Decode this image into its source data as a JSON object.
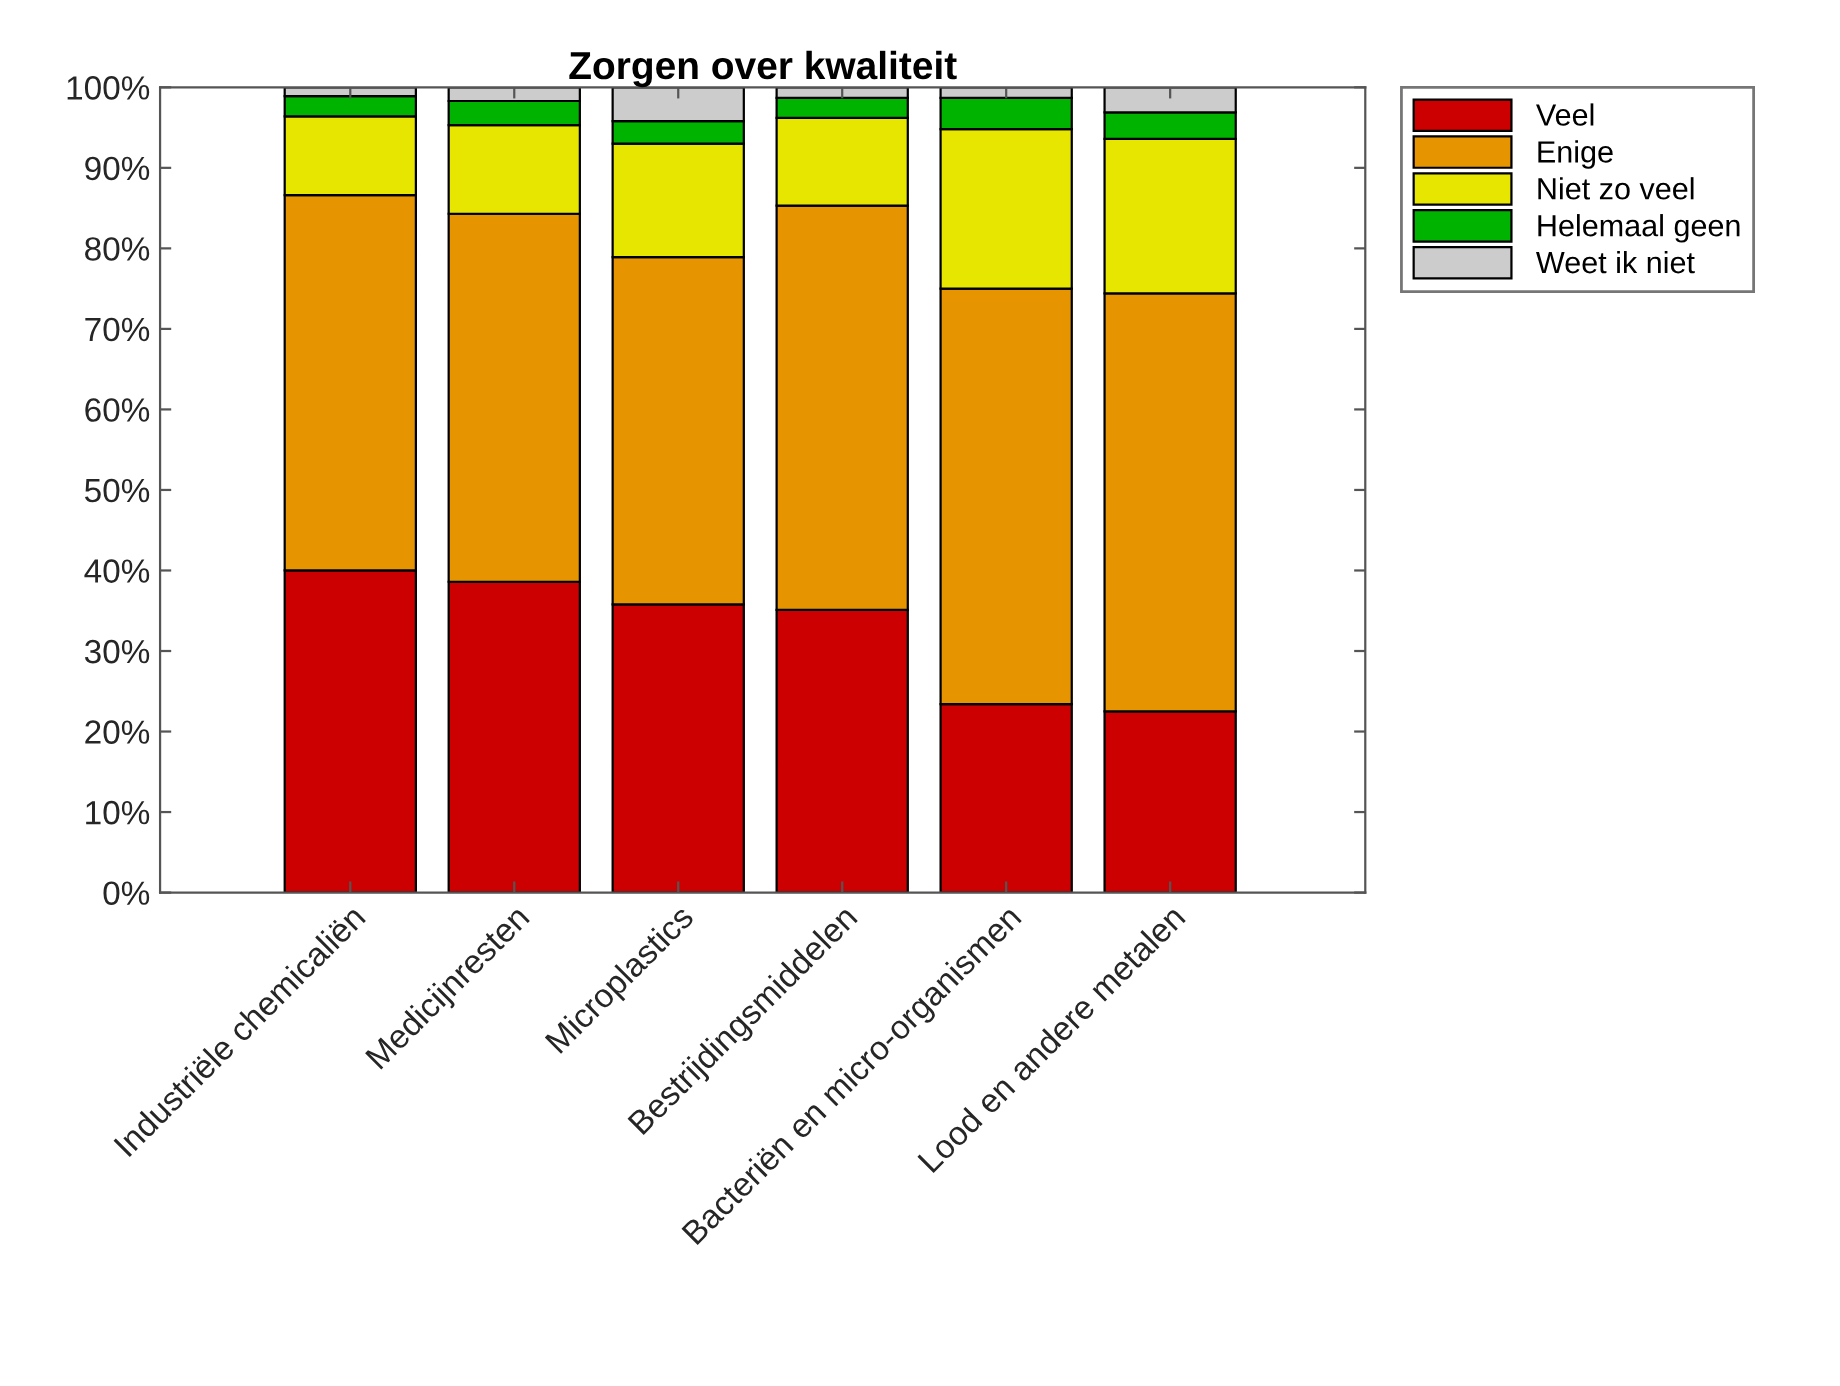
{
  "chart_data": {
    "type": "bar",
    "title": "Zorgen over kwaliteit",
    "stacked": true,
    "categories": [
      "Industriële chemicaliën",
      "Medicijnresten",
      "Microplastics",
      "Bestrijdingsmiddelen",
      "Bacteriën en micro-organismen",
      "Lood en andere metalen"
    ],
    "series": [
      {
        "name": "Veel",
        "color": "#cc0000",
        "values": [
          40.0,
          38.6,
          35.8,
          35.1,
          23.4,
          22.5
        ]
      },
      {
        "name": "Enige",
        "color": "#e69500",
        "values": [
          46.6,
          45.7,
          43.1,
          50.2,
          51.6,
          51.9
        ]
      },
      {
        "name": "Niet zo veel",
        "color": "#e6e600",
        "values": [
          9.8,
          11.0,
          14.1,
          10.9,
          19.8,
          19.2
        ]
      },
      {
        "name": "Helemaal geen",
        "color": "#00b300",
        "values": [
          2.5,
          3.0,
          2.8,
          2.5,
          3.9,
          3.3
        ]
      },
      {
        "name": "Weet ik niet",
        "color": "#cccccc",
        "values": [
          1.1,
          1.7,
          4.2,
          1.3,
          1.3,
          3.1
        ]
      }
    ],
    "ylim": [
      0,
      100
    ],
    "yticks": [
      {
        "value": 0,
        "label": "0%"
      },
      {
        "value": 10,
        "label": "10%"
      },
      {
        "value": 20,
        "label": "20%"
      },
      {
        "value": 30,
        "label": "30%"
      },
      {
        "value": 40,
        "label": "40%"
      },
      {
        "value": 50,
        "label": "50%"
      },
      {
        "value": 60,
        "label": "60%"
      },
      {
        "value": 70,
        "label": "70%"
      },
      {
        "value": 80,
        "label": "80%"
      },
      {
        "value": 90,
        "label": "90%"
      },
      {
        "value": 100,
        "label": "100%"
      }
    ],
    "legend": "top right",
    "grid": false
  }
}
